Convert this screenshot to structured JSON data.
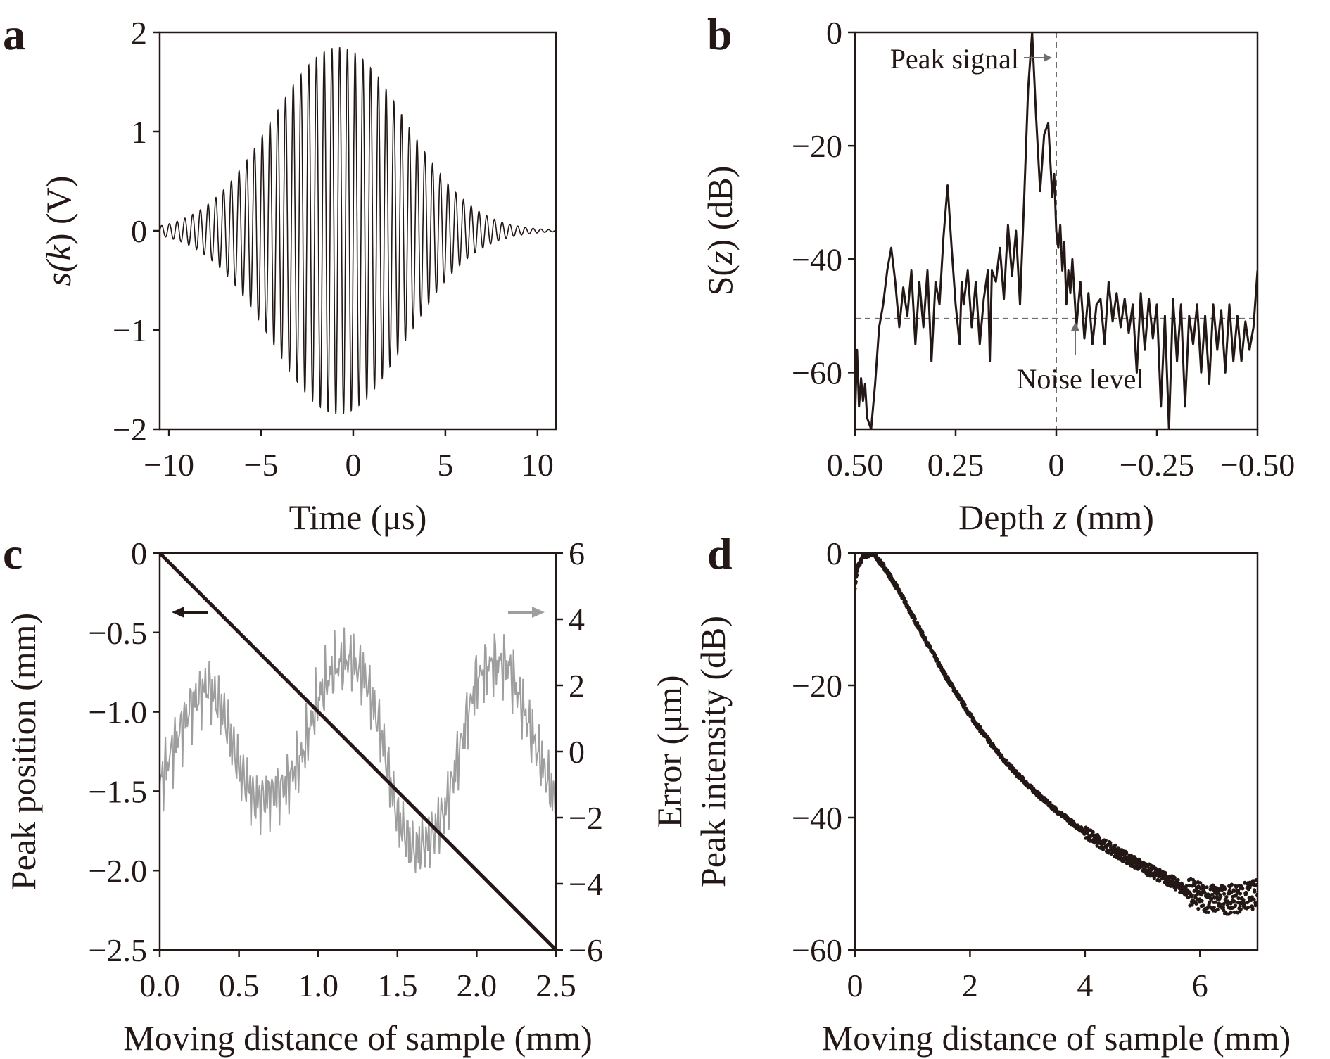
{
  "colors": {
    "ink": "#231815",
    "grey_trace": "#9e9e9e",
    "dashed": "#6e6e6e"
  },
  "chart_data": [
    {
      "panel": "a",
      "type": "line",
      "xlabel_parts": [
        "Time (",
        "μs",
        ")"
      ],
      "ylabel_parts": [
        "s(",
        "k",
        ") (V)"
      ],
      "xlim": [
        -10.5,
        11
      ],
      "ylim": [
        -2,
        2
      ],
      "xticks": [
        -10,
        -5,
        0,
        5,
        10
      ],
      "xtick_labels": [
        "−10",
        "−5",
        "0",
        "5",
        "10"
      ],
      "yticks": [
        -2,
        -1,
        0,
        1,
        2
      ],
      "ytick_labels": [
        "−2",
        "−1",
        "0",
        "1",
        "2"
      ],
      "signal": {
        "center": -0.8,
        "envelope_sigma": 3.6,
        "peak_amplitude": 1.85,
        "period": 0.42,
        "extent": [
          -10.5,
          11
        ]
      }
    },
    {
      "panel": "b",
      "type": "line",
      "xlabel_parts": [
        "Depth ",
        "z",
        " (mm)"
      ],
      "ylabel_parts": [
        "S(",
        "z",
        ") (dB)"
      ],
      "xlim": [
        0.5,
        -0.5
      ],
      "ylim": [
        -70,
        0
      ],
      "xticks": [
        0.5,
        0.25,
        0,
        -0.25,
        -0.5
      ],
      "xtick_labels": [
        "0.50",
        "0.25",
        "0",
        "−0.25",
        "−0.50"
      ],
      "yticks": [
        -60,
        -40,
        -20,
        0
      ],
      "ytick_labels": [
        "−60",
        "−40",
        "−20",
        "0"
      ],
      "annotations": {
        "peak": "Peak signal",
        "noise": "Noise level"
      },
      "noise_level": -50.5,
      "x": [
        0.5,
        0.495,
        0.49,
        0.485,
        0.48,
        0.475,
        0.47,
        0.46,
        0.45,
        0.44,
        0.43,
        0.42,
        0.41,
        0.4,
        0.39,
        0.38,
        0.37,
        0.36,
        0.35,
        0.34,
        0.33,
        0.32,
        0.31,
        0.3,
        0.29,
        0.28,
        0.27,
        0.26,
        0.25,
        0.24,
        0.235,
        0.23,
        0.22,
        0.21,
        0.2,
        0.19,
        0.18,
        0.17,
        0.165,
        0.16,
        0.15,
        0.14,
        0.13,
        0.12,
        0.11,
        0.1,
        0.09,
        0.08,
        0.07,
        0.06,
        0.05,
        0.04,
        0.03,
        0.02,
        0.01,
        0.005,
        0.0,
        -0.005,
        -0.01,
        -0.015,
        -0.02,
        -0.025,
        -0.03,
        -0.035,
        -0.04,
        -0.05,
        -0.06,
        -0.07,
        -0.08,
        -0.09,
        -0.1,
        -0.11,
        -0.12,
        -0.13,
        -0.14,
        -0.15,
        -0.16,
        -0.17,
        -0.18,
        -0.19,
        -0.2,
        -0.21,
        -0.22,
        -0.23,
        -0.24,
        -0.25,
        -0.26,
        -0.27,
        -0.28,
        -0.29,
        -0.3,
        -0.31,
        -0.32,
        -0.33,
        -0.34,
        -0.35,
        -0.36,
        -0.37,
        -0.38,
        -0.39,
        -0.4,
        -0.41,
        -0.42,
        -0.43,
        -0.44,
        -0.45,
        -0.46,
        -0.47,
        -0.48,
        -0.49,
        -0.5
      ],
      "y": [
        -68,
        -56,
        -66,
        -61,
        -65,
        -62,
        -68,
        -70,
        -62,
        -52,
        -48,
        -42,
        -38,
        -44,
        -52,
        -45,
        -50,
        -42,
        -55,
        -44,
        -52,
        -42,
        -58,
        -44,
        -48,
        -36,
        -27,
        -38,
        -48,
        -55,
        -44,
        -48,
        -42,
        -52,
        -44,
        -55,
        -47,
        -42,
        -58,
        -42,
        -44,
        -38,
        -47,
        -34,
        -43,
        -35,
        -48,
        -30,
        -10,
        0,
        -15,
        -28,
        -18,
        -16,
        -29,
        -25,
        -35,
        -38,
        -34,
        -42,
        -37,
        -48,
        -42,
        -46,
        -40,
        -52,
        -44,
        -54,
        -46,
        -55,
        -48,
        -47,
        -55,
        -44,
        -51,
        -46,
        -52,
        -47,
        -53,
        -48,
        -60,
        -46,
        -56,
        -47,
        -54,
        -48,
        -66,
        -50,
        -70,
        -47,
        -58,
        -48,
        -66,
        -50,
        -55,
        -48,
        -60,
        -50,
        -62,
        -48,
        -56,
        -49,
        -60,
        -48,
        -58,
        -50,
        -58,
        -51,
        -56,
        -52,
        -42
      ]
    },
    {
      "panel": "c",
      "type": "line",
      "xlabel": "Moving distance of sample (mm)",
      "ylabel": "Peak position (mm)",
      "y2label_parts": [
        "Error (",
        "μm",
        ")"
      ],
      "xlim": [
        0,
        2.5
      ],
      "ylim": [
        -2.5,
        0
      ],
      "y2lim": [
        -6,
        6
      ],
      "xticks": [
        0,
        0.5,
        1,
        1.5,
        2,
        2.5
      ],
      "xtick_labels": [
        "0.0",
        "0.5",
        "1.0",
        "1.5",
        "2.0",
        "2.5"
      ],
      "yticks": [
        -2.5,
        -2,
        -1.5,
        -1,
        -0.5,
        0
      ],
      "ytick_labels": [
        "−2.5",
        "−2.0",
        "−1.5",
        "−1.0",
        "−0.5",
        "0"
      ],
      "y2ticks": [
        -6,
        -4,
        -2,
        0,
        2,
        4,
        6
      ],
      "y2tick_labels": [
        "−6",
        "−4",
        "−2",
        "0",
        "2",
        "4",
        "6"
      ],
      "series": [
        {
          "axis": "left",
          "x": [
            0,
            2.5
          ],
          "y": [
            0,
            -2.5
          ]
        },
        {
          "axis": "right",
          "x": [
            0,
            0.1,
            0.2,
            0.3,
            0.4,
            0.5,
            0.6,
            0.7,
            0.8,
            0.9,
            1.0,
            1.1,
            1.2,
            1.3,
            1.4,
            1.5,
            1.6,
            1.7,
            1.8,
            1.9,
            2.0,
            2.1,
            2.2,
            2.3,
            2.4,
            2.5
          ],
          "y": [
            -1.0,
            0.3,
            1.4,
            2.0,
            1.2,
            -0.5,
            -1.5,
            -1.3,
            -1.0,
            -0.1,
            1.6,
            2.5,
            2.8,
            2.2,
            0.5,
            -2.0,
            -3.0,
            -2.7,
            -1.8,
            0.2,
            2.2,
            2.7,
            2.6,
            1.2,
            -0.2,
            -1.6
          ]
        }
      ]
    },
    {
      "panel": "d",
      "type": "scatter",
      "xlabel": "Moving distance of sample (mm)",
      "ylabel": "Peak intensity (dB)",
      "xlim": [
        0,
        7
      ],
      "ylim": [
        -60,
        0
      ],
      "xticks": [
        0,
        2,
        4,
        6
      ],
      "xtick_labels": [
        "0",
        "2",
        "4",
        "6"
      ],
      "yticks": [
        -60,
        -40,
        -20,
        0
      ],
      "ytick_labels": [
        "−60",
        "−40",
        "−20",
        "0"
      ],
      "x": [
        0.0,
        0.05,
        0.15,
        0.3,
        0.5,
        0.75,
        1.0,
        1.25,
        1.5,
        1.75,
        2.0,
        2.25,
        2.5,
        2.75,
        3.0,
        3.25,
        3.5,
        3.75,
        4.0,
        4.25,
        4.5,
        4.75,
        5.0,
        5.25,
        5.5,
        5.75,
        6.0,
        6.25,
        6.5,
        6.75,
        7.0
      ],
      "y": [
        -5,
        -2,
        -0.5,
        0,
        -2,
        -5.5,
        -9.5,
        -13.5,
        -17.5,
        -21,
        -24.5,
        -27.5,
        -30.3,
        -32.8,
        -35,
        -37,
        -38.9,
        -40.6,
        -42.2,
        -43.6,
        -44.9,
        -46.2,
        -47.4,
        -48.5,
        -49.6,
        -51,
        -52,
        -52.3,
        -52.4,
        -52,
        -51.5
      ]
    }
  ]
}
